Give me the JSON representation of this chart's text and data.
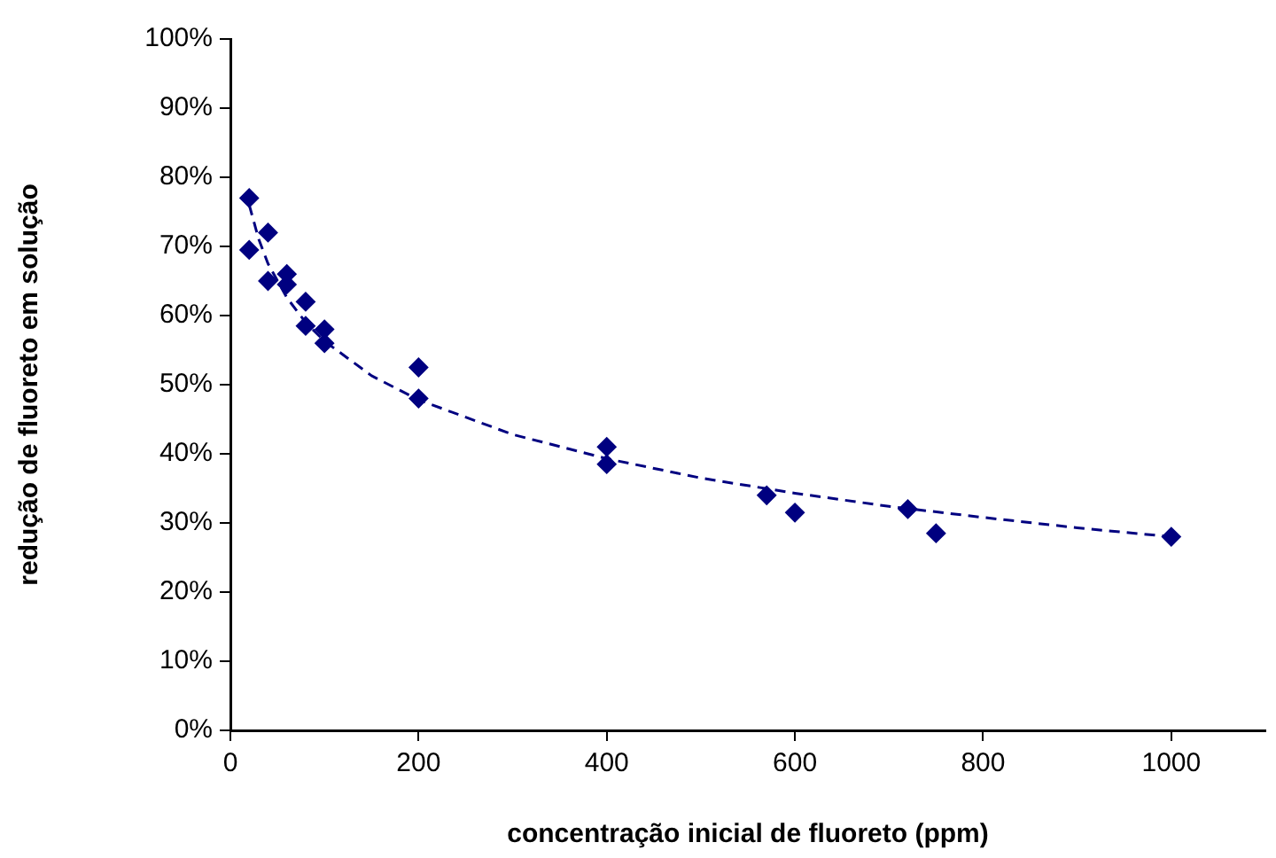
{
  "chart_data": {
    "type": "scatter",
    "xlabel": "concentração inicial de fluoreto (ppm)",
    "ylabel": "redução de fluoreto em solução",
    "xlim": [
      0,
      1100
    ],
    "xticks": [
      0,
      200,
      400,
      600,
      800,
      1000
    ],
    "ylim": [
      0,
      100
    ],
    "yticks": [
      {
        "value": 0,
        "label": "0%"
      },
      {
        "value": 10,
        "label": "10%"
      },
      {
        "value": 20,
        "label": "20%"
      },
      {
        "value": 30,
        "label": "30%"
      },
      {
        "value": 40,
        "label": "40%"
      },
      {
        "value": 50,
        "label": "50%"
      },
      {
        "value": 60,
        "label": "60%"
      },
      {
        "value": 70,
        "label": "70%"
      },
      {
        "value": 80,
        "label": "80%"
      },
      {
        "value": 90,
        "label": "90%"
      },
      {
        "value": 100,
        "label": "100%"
      }
    ],
    "grid": false,
    "legend": false,
    "marker": "diamond",
    "series": [
      {
        "color": "#000080",
        "x": [
          20,
          20,
          40,
          40,
          60,
          60,
          80,
          80,
          100,
          100,
          200,
          200,
          400,
          400,
          570,
          600,
          720,
          750,
          1000
        ],
        "values": [
          77,
          69.5,
          72,
          65,
          66,
          64.5,
          62,
          58.5,
          58,
          56,
          52.5,
          48,
          41,
          38.5,
          34,
          31.5,
          32,
          28.5,
          28
        ]
      },
      {
        "type": "line",
        "color": "#000080",
        "line_style": "dashed",
        "marker": "none",
        "x": [
          20,
          30,
          40,
          60,
          80,
          100,
          150,
          200,
          300,
          400,
          500,
          600,
          700,
          800,
          900,
          1000
        ],
        "values": [
          76,
          71.1,
          67.5,
          62.6,
          59,
          56.3,
          51.3,
          47.8,
          42.8,
          39.3,
          36.5,
          34.3,
          32.4,
          30.8,
          29.3,
          28
        ]
      }
    ]
  }
}
